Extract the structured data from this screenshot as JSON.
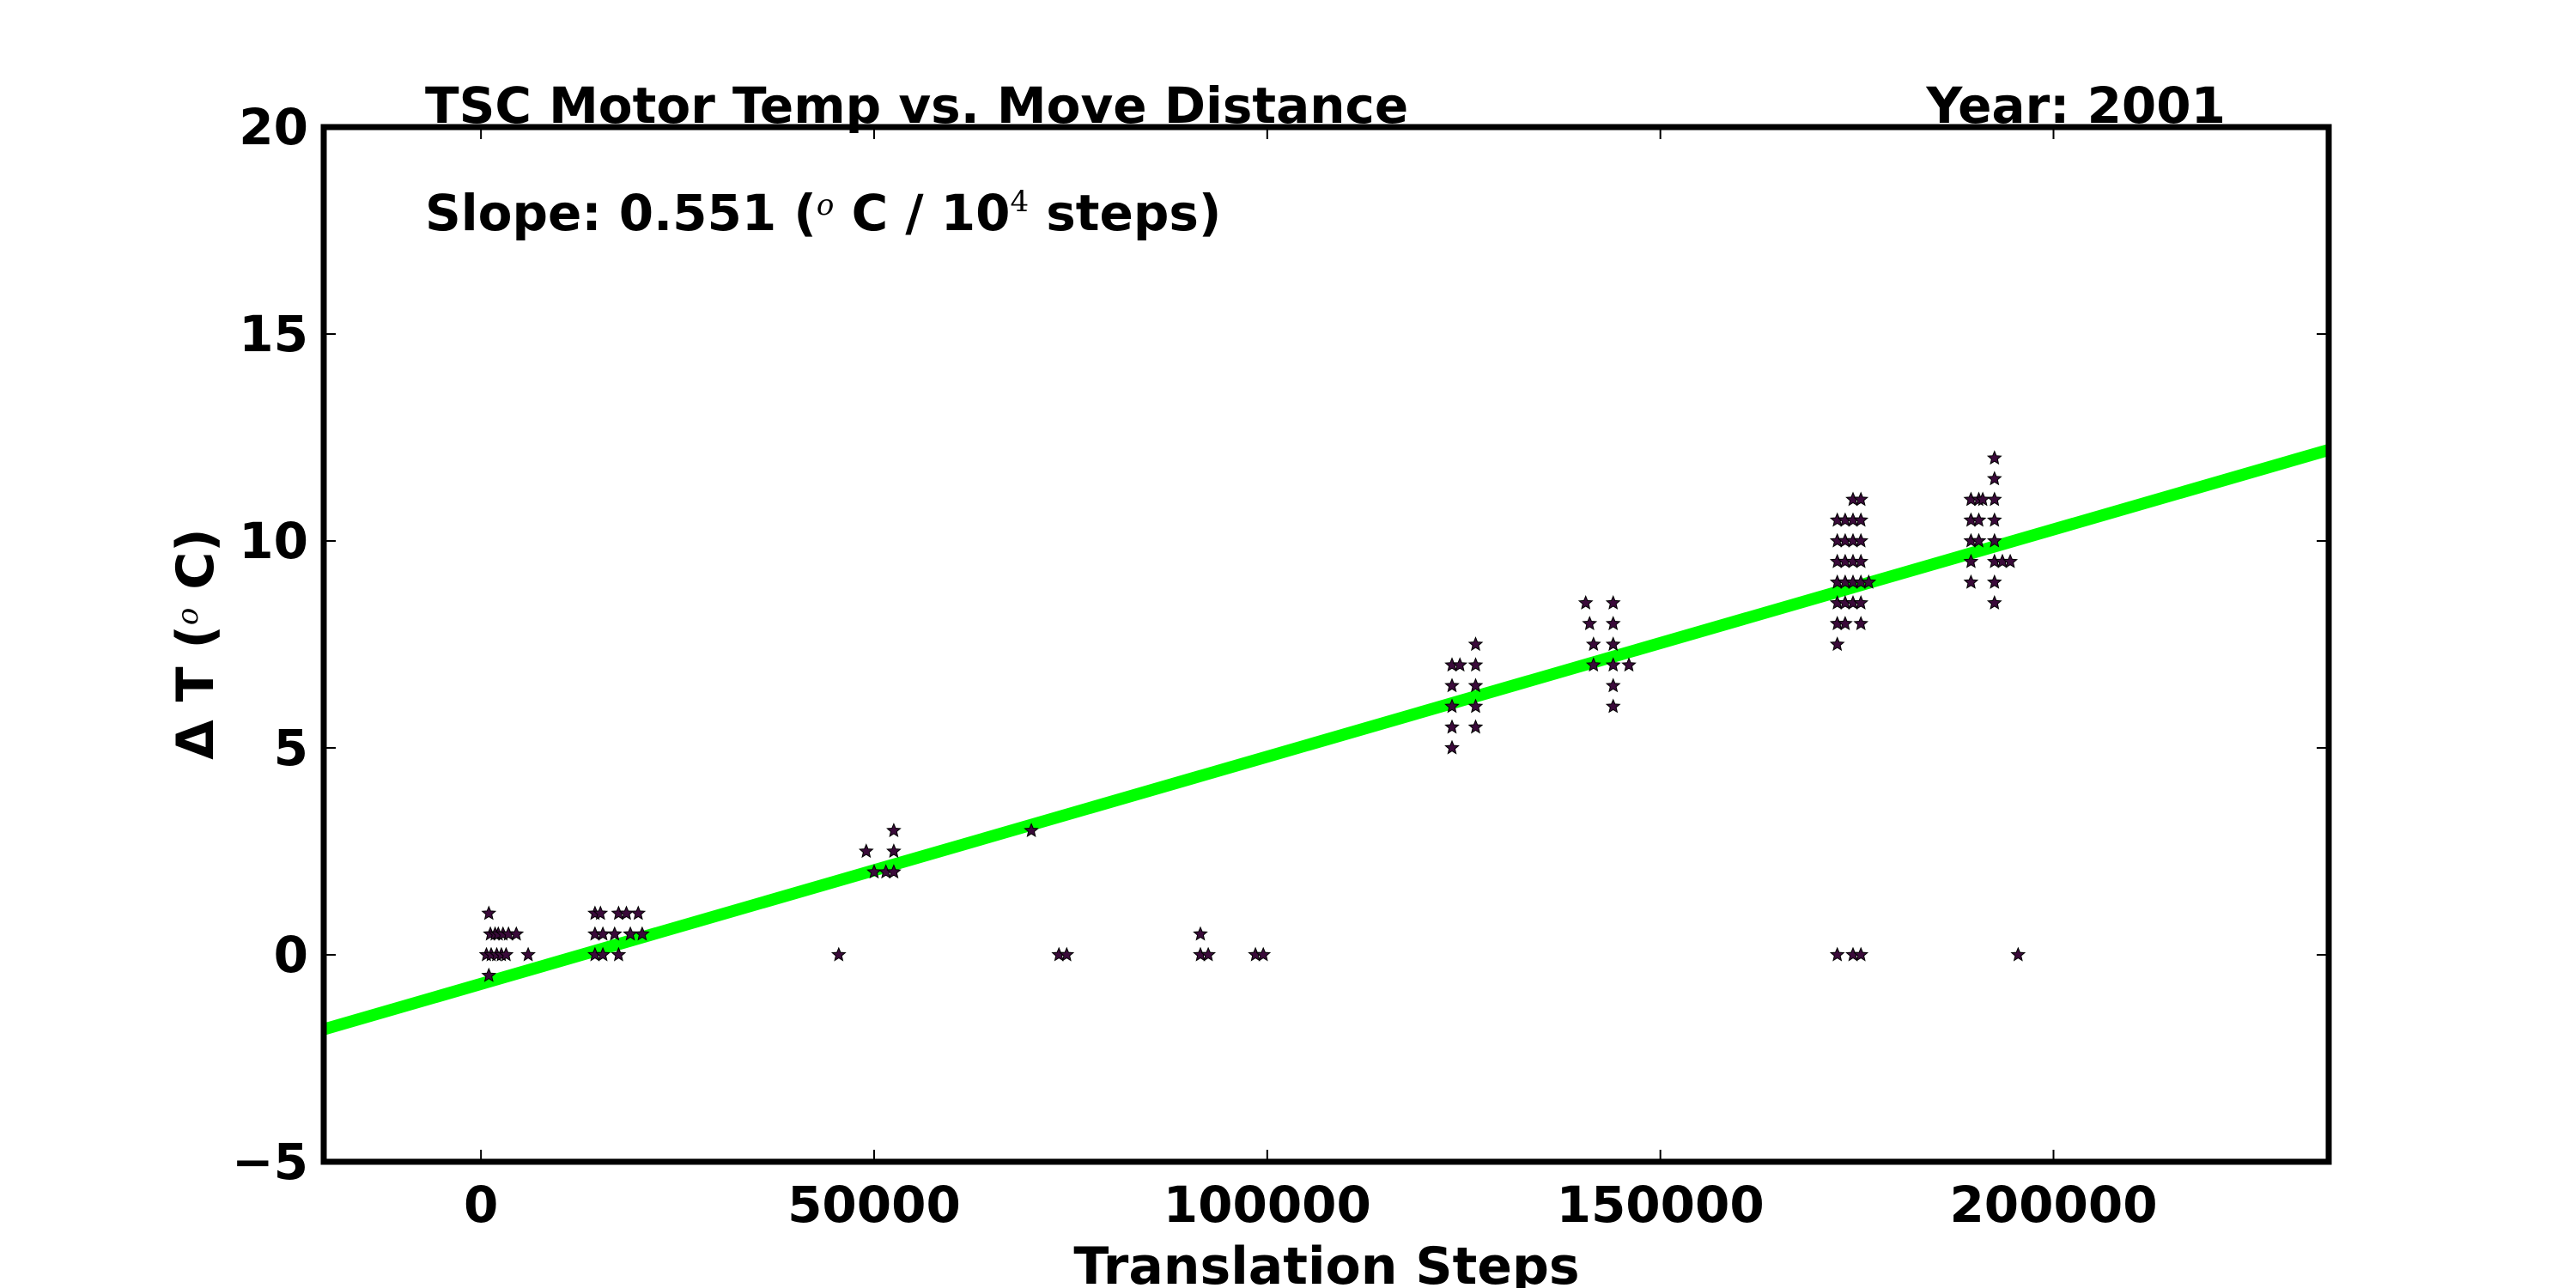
{
  "chart_data": {
    "type": "scatter",
    "title": "TSC Motor Temp vs. Move Distance",
    "year_label": "Year: 2001",
    "annotation": {
      "prefix": "Slope:  0.551 (",
      "sup_o": "o",
      "mid": " C / 10",
      "sup_exp": "4",
      "suffix": "  steps)"
    },
    "xlabel": "Translation Steps",
    "ylabel": {
      "prefix": "Δ T (",
      "sup_o": "o",
      "suffix": " C)"
    },
    "xlim": [
      -20000,
      235000
    ],
    "ylim": [
      -5,
      20
    ],
    "xticks": [
      0,
      50000,
      100000,
      150000,
      200000
    ],
    "xtick_labels": [
      "0",
      "50000",
      "100000",
      "150000",
      "200000"
    ],
    "yticks": [
      -5,
      0,
      5,
      10,
      15,
      20
    ],
    "ytick_labels": [
      "−5",
      "0",
      "5",
      "10",
      "15",
      "20"
    ],
    "grid": false,
    "marker": "star",
    "marker_color": "#3a0a3a",
    "fit_line": {
      "color": "#00ff00",
      "x": [
        -20000,
        235000
      ],
      "y": [
        -1.8,
        12.2
      ]
    },
    "points": [
      [
        1000,
        1.0
      ],
      [
        1200,
        0.5
      ],
      [
        1800,
        0.5
      ],
      [
        2200,
        0.5
      ],
      [
        2800,
        0.5
      ],
      [
        3500,
        0.5
      ],
      [
        4500,
        0.5
      ],
      [
        700,
        0.0
      ],
      [
        1300,
        0.0
      ],
      [
        2000,
        0.0
      ],
      [
        2600,
        0.0
      ],
      [
        3200,
        0.0
      ],
      [
        6000,
        0.0
      ],
      [
        1000,
        -0.5
      ],
      [
        14500,
        1.0
      ],
      [
        15200,
        1.0
      ],
      [
        17500,
        1.0
      ],
      [
        18500,
        1.0
      ],
      [
        20000,
        1.0
      ],
      [
        14500,
        0.5
      ],
      [
        15500,
        0.5
      ],
      [
        17000,
        0.5
      ],
      [
        19000,
        0.5
      ],
      [
        20500,
        0.5
      ],
      [
        14500,
        0.0
      ],
      [
        15500,
        0.0
      ],
      [
        17500,
        0.0
      ],
      [
        49000,
        2.5
      ],
      [
        52500,
        2.5
      ],
      [
        52500,
        3.0
      ],
      [
        50000,
        2.0
      ],
      [
        51500,
        2.0
      ],
      [
        52500,
        2.0
      ],
      [
        70000,
        3.0
      ],
      [
        45500,
        0.0
      ],
      [
        73500,
        0.0
      ],
      [
        74500,
        0.0
      ],
      [
        91500,
        0.5
      ],
      [
        91500,
        0.0
      ],
      [
        92500,
        0.0
      ],
      [
        98500,
        0.0
      ],
      [
        99500,
        0.0
      ],
      [
        123500,
        7.0
      ],
      [
        124500,
        7.0
      ],
      [
        123500,
        6.5
      ],
      [
        123500,
        6.0
      ],
      [
        123500,
        5.5
      ],
      [
        123500,
        5.0
      ],
      [
        126500,
        7.5
      ],
      [
        126500,
        7.0
      ],
      [
        126500,
        6.5
      ],
      [
        126500,
        6.0
      ],
      [
        126500,
        5.5
      ],
      [
        140500,
        8.5
      ],
      [
        141000,
        8.0
      ],
      [
        141500,
        7.5
      ],
      [
        141500,
        7.0
      ],
      [
        144000,
        8.5
      ],
      [
        144000,
        8.0
      ],
      [
        144000,
        7.5
      ],
      [
        144000,
        7.0
      ],
      [
        144000,
        6.5
      ],
      [
        144000,
        6.0
      ],
      [
        146000,
        7.0
      ],
      [
        172500,
        10.5
      ],
      [
        173500,
        10.5
      ],
      [
        174500,
        10.5
      ],
      [
        175500,
        10.5
      ],
      [
        172500,
        10.0
      ],
      [
        173500,
        10.0
      ],
      [
        174500,
        10.0
      ],
      [
        175500,
        10.0
      ],
      [
        172500,
        9.5
      ],
      [
        173500,
        9.5
      ],
      [
        174500,
        9.5
      ],
      [
        175500,
        9.5
      ],
      [
        172500,
        9.0
      ],
      [
        173500,
        9.0
      ],
      [
        174500,
        9.0
      ],
      [
        175500,
        9.0
      ],
      [
        176500,
        9.0
      ],
      [
        172500,
        8.5
      ],
      [
        173500,
        8.5
      ],
      [
        174500,
        8.5
      ],
      [
        175500,
        8.5
      ],
      [
        172500,
        8.0
      ],
      [
        173500,
        8.0
      ],
      [
        175500,
        8.0
      ],
      [
        172500,
        7.5
      ],
      [
        174500,
        11.0
      ],
      [
        175500,
        11.0
      ],
      [
        172500,
        0.0
      ],
      [
        174500,
        0.0
      ],
      [
        175500,
        0.0
      ],
      [
        189500,
        11.0
      ],
      [
        190500,
        11.0
      ],
      [
        191000,
        11.0
      ],
      [
        189500,
        10.5
      ],
      [
        190500,
        10.5
      ],
      [
        189500,
        10.0
      ],
      [
        190500,
        10.0
      ],
      [
        189500,
        9.5
      ],
      [
        189500,
        9.0
      ],
      [
        192500,
        12.0
      ],
      [
        192500,
        11.5
      ],
      [
        192500,
        11.0
      ],
      [
        192500,
        10.5
      ],
      [
        192500,
        10.0
      ],
      [
        192500,
        9.5
      ],
      [
        192500,
        9.0
      ],
      [
        192500,
        8.5
      ],
      [
        193500,
        9.5
      ],
      [
        194500,
        9.5
      ],
      [
        195500,
        0.0
      ]
    ]
  }
}
